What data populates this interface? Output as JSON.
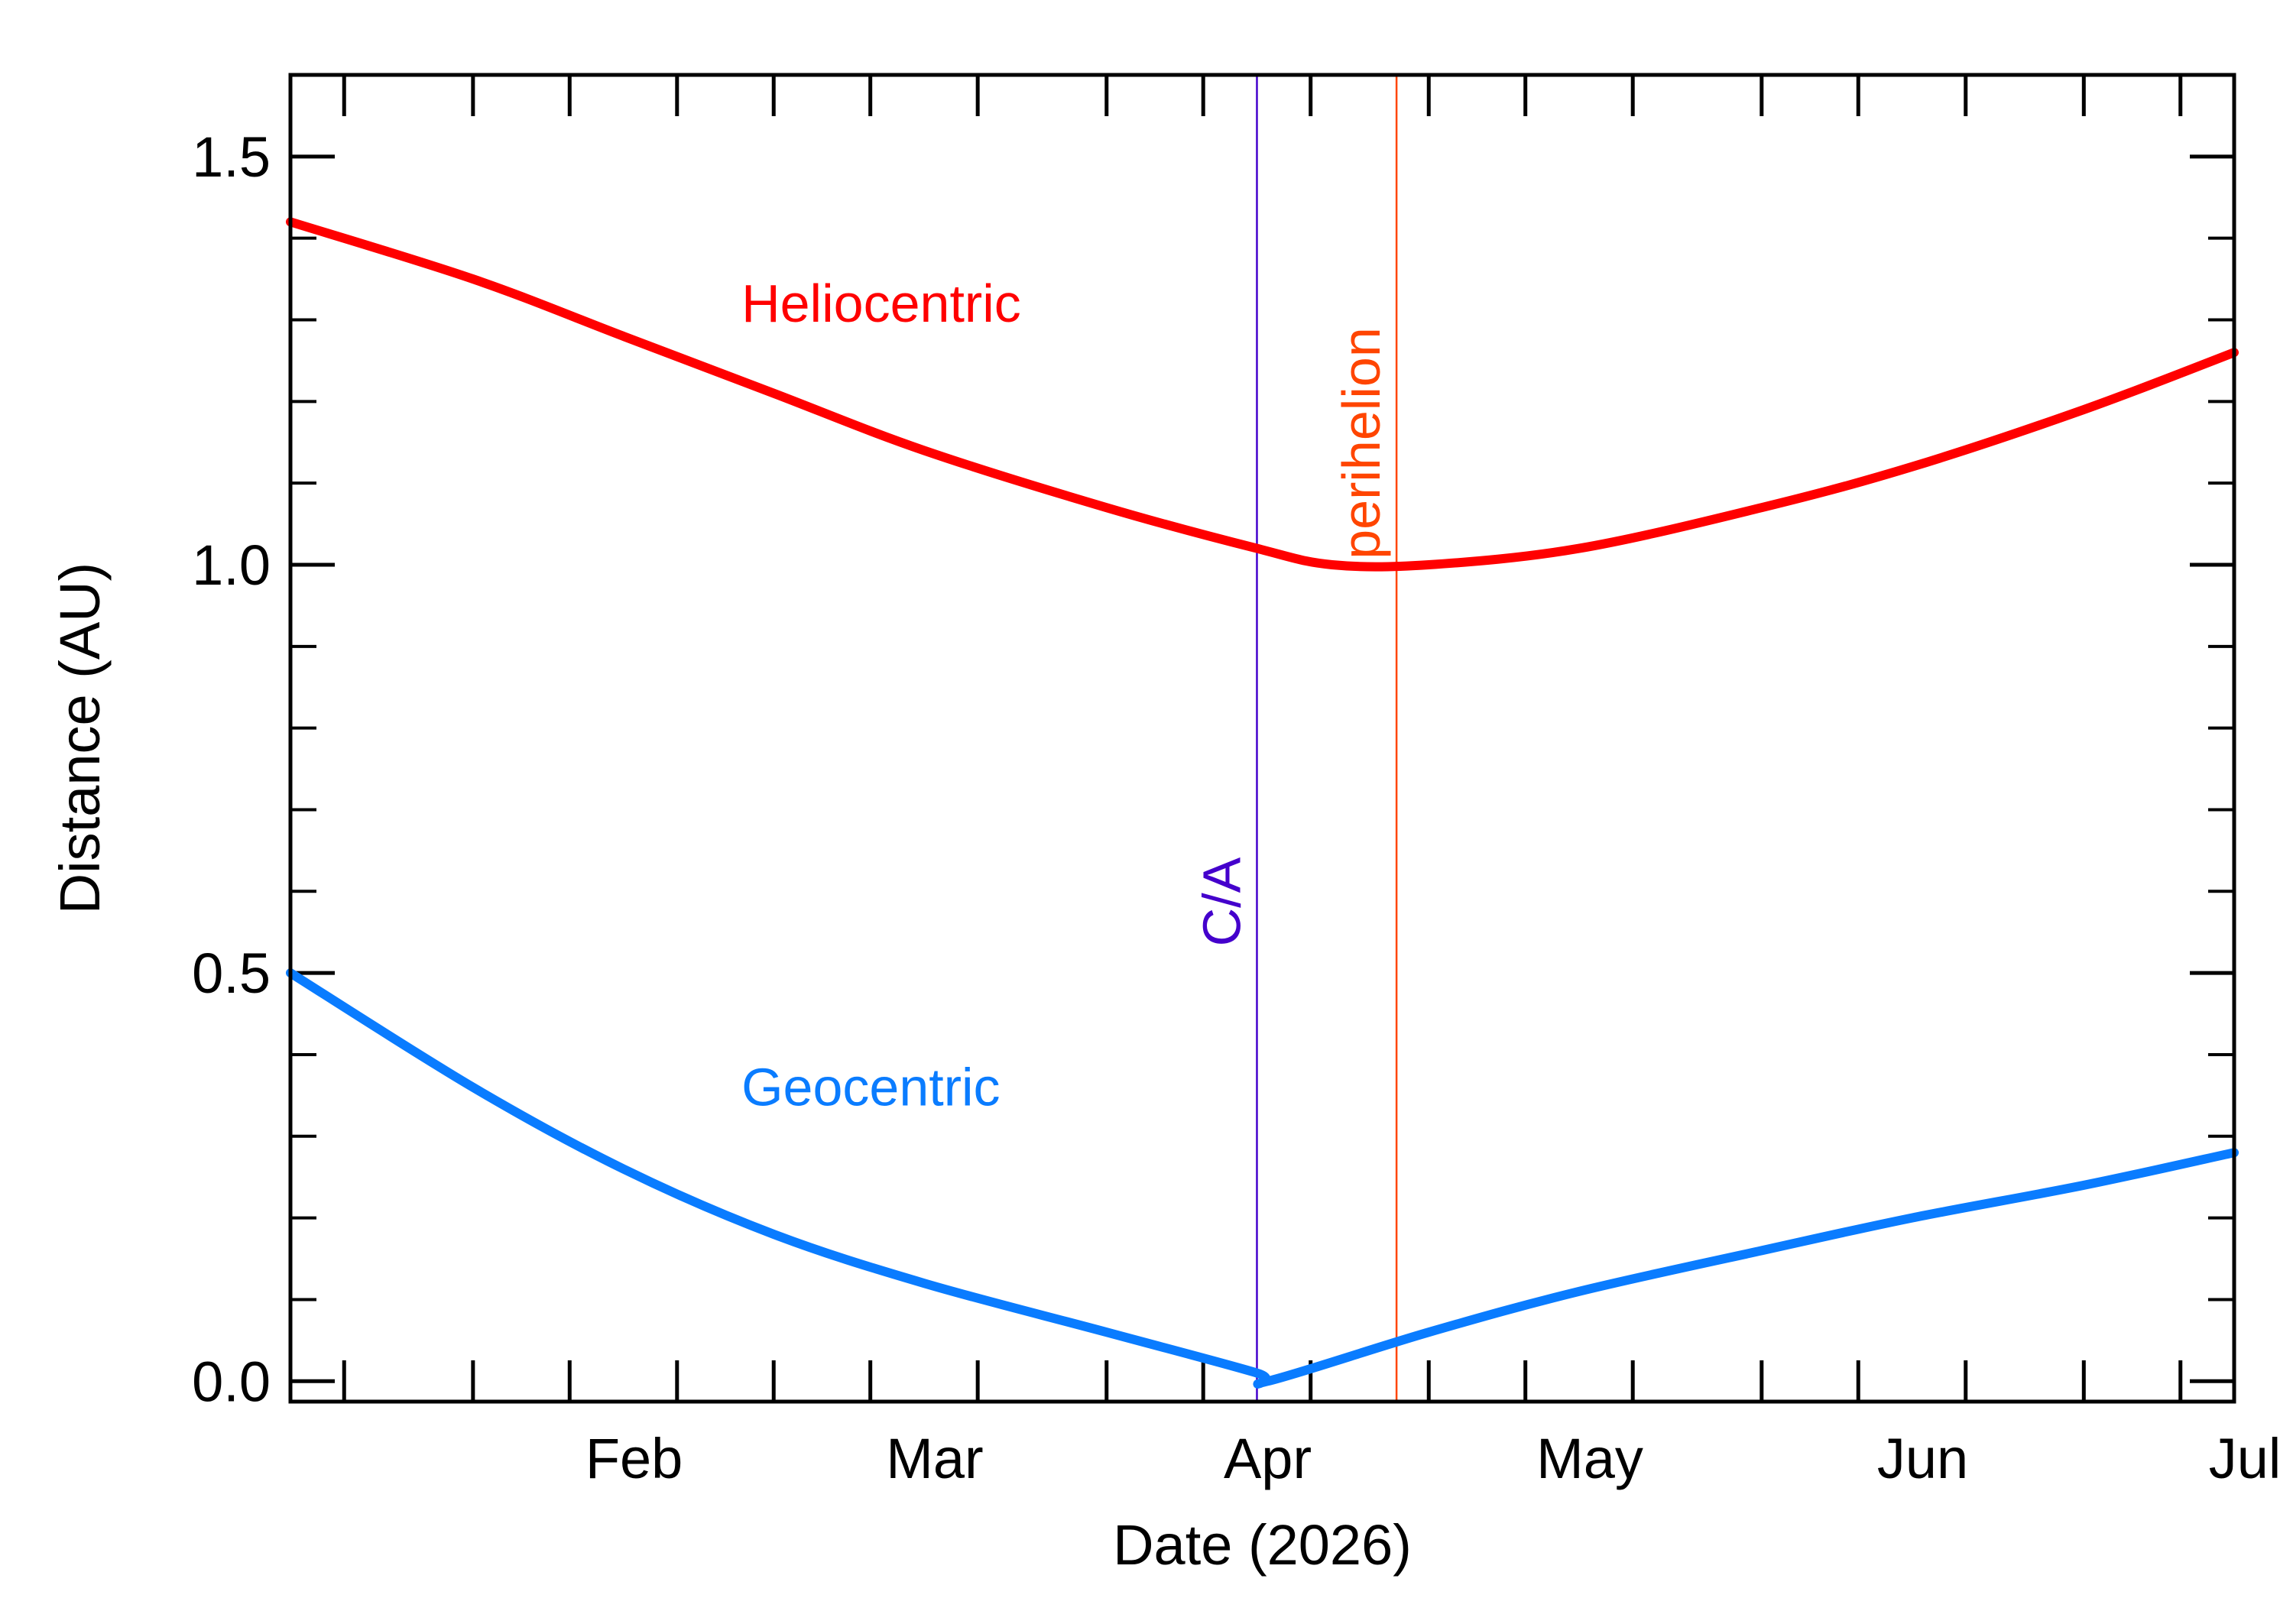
{
  "chart_data": {
    "type": "line",
    "xlabel": "Date (2026)",
    "ylabel": "Distance (AU)",
    "xlim": [
      "2026-01-15",
      "2026-07-15"
    ],
    "ylim": [
      -0.025,
      1.6
    ],
    "x_ticks": [
      {
        "label": "Feb",
        "date": "2026-02-01"
      },
      {
        "label": "Mar",
        "date": "2026-03-01"
      },
      {
        "label": "Apr",
        "date": "2026-04-01"
      },
      {
        "label": "May",
        "date": "2026-05-01"
      },
      {
        "label": "Jun",
        "date": "2026-06-01"
      },
      {
        "label": "Jul",
        "date": "2026-07-01"
      }
    ],
    "y_ticks": [
      0.0,
      0.5,
      1.0,
      1.5
    ],
    "y_tick_labels": [
      "0.0",
      "0.5",
      "1.0",
      "1.5"
    ],
    "y_minor_step": 0.1,
    "x_minor_ticks_days": [
      1,
      10,
      20
    ],
    "grid": false,
    "series": [
      {
        "name": "Heliocentric",
        "color": "#ff0000",
        "label_anchor": {
          "date": "2026-02-26",
          "y": 1.32
        },
        "x": [
          "2026-01-15",
          "2026-02-01",
          "2026-02-15",
          "2026-03-01",
          "2026-03-15",
          "2026-04-01",
          "2026-04-15",
          "2026-04-22",
          "2026-05-01",
          "2026-05-15",
          "2026-06-01",
          "2026-06-15",
          "2026-07-01",
          "2026-07-15"
        ],
        "y": [
          1.42,
          1.35,
          1.28,
          1.21,
          1.14,
          1.07,
          1.02,
          1.0,
          1.0,
          1.02,
          1.07,
          1.12,
          1.19,
          1.26
        ]
      },
      {
        "name": "Geocentric",
        "color": "#0a7cff",
        "label_anchor": {
          "date": "2026-02-26",
          "y": 0.36
        },
        "x": [
          "2026-01-15",
          "2026-02-01",
          "2026-02-15",
          "2026-03-01",
          "2026-03-15",
          "2026-04-01",
          "2026-04-15",
          "2026-04-16",
          "2026-05-01",
          "2026-05-15",
          "2026-06-01",
          "2026-06-15",
          "2026-07-01",
          "2026-07-15"
        ],
        "y": [
          0.5,
          0.36,
          0.26,
          0.18,
          0.12,
          0.06,
          0.01,
          0.0,
          0.06,
          0.11,
          0.16,
          0.2,
          0.24,
          0.28
        ]
      }
    ],
    "annotations": [
      {
        "label": "C/A",
        "date": "2026-04-15",
        "color": "#4400cc"
      },
      {
        "label": "perihelion",
        "date": "2026-04-28",
        "color": "#ff4500"
      }
    ]
  }
}
